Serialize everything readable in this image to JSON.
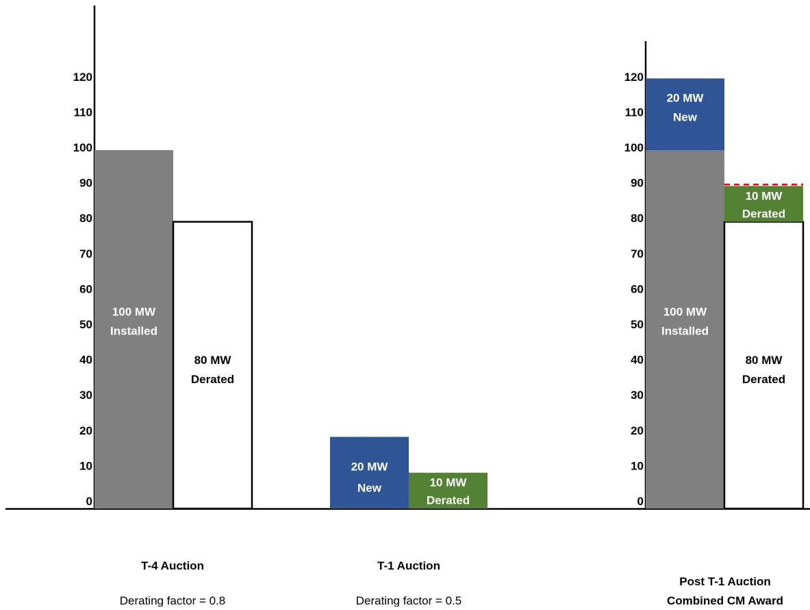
{
  "chart_data": {
    "type": "bar",
    "stacked": true,
    "title": "",
    "ylim": [
      0,
      120
    ],
    "y_ticks": [
      0,
      10,
      20,
      30,
      40,
      50,
      60,
      70,
      80,
      90,
      100,
      110,
      120
    ],
    "grid": false,
    "legend": "none",
    "colors": {
      "installed": "#808080",
      "derated_existing": "#ffffff",
      "new": "#2f5597",
      "derated_new": "#548235",
      "dash_line": "#ff0000"
    },
    "groups": [
      {
        "title": "T-4 Auction",
        "subtitle": "Derating factor = 0.8",
        "bars": [
          {
            "segments": [
              {
                "value": 100,
                "label_line1": "100 MW",
                "label_line2": "Installed",
                "color_key": "installed"
              }
            ]
          },
          {
            "segments": [
              {
                "value": 80,
                "label_line1": "80 MW",
                "label_line2": "Derated",
                "color_key": "derated_existing"
              }
            ]
          }
        ]
      },
      {
        "title": "T-1 Auction",
        "subtitle": "Derating factor = 0.5",
        "bars": [
          {
            "segments": [
              {
                "value": 20,
                "label_line1": "20 MW",
                "label_line2": "New",
                "color_key": "new"
              }
            ]
          },
          {
            "segments": [
              {
                "value": 10,
                "label_line1": "10 MW",
                "label_line2": "Derated",
                "color_key": "derated_new"
              }
            ]
          }
        ]
      },
      {
        "title": "Post T-1 Auction",
        "subtitle": "Combined CM Award",
        "bars": [
          {
            "segments": [
              {
                "value": 100,
                "label_line1": "100 MW",
                "label_line2": "Installed",
                "color_key": "installed"
              },
              {
                "value": 20,
                "label_line1": "20 MW",
                "label_line2": "New",
                "color_key": "new"
              }
            ]
          },
          {
            "segments": [
              {
                "value": 80,
                "label_line1": "80 MW",
                "label_line2": "Derated",
                "color_key": "derated_existing"
              },
              {
                "value": 10,
                "label_line1": "10 MW",
                "label_line2": "Derated",
                "color_key": "derated_new"
              }
            ],
            "dashed_top": true
          }
        ]
      }
    ]
  }
}
